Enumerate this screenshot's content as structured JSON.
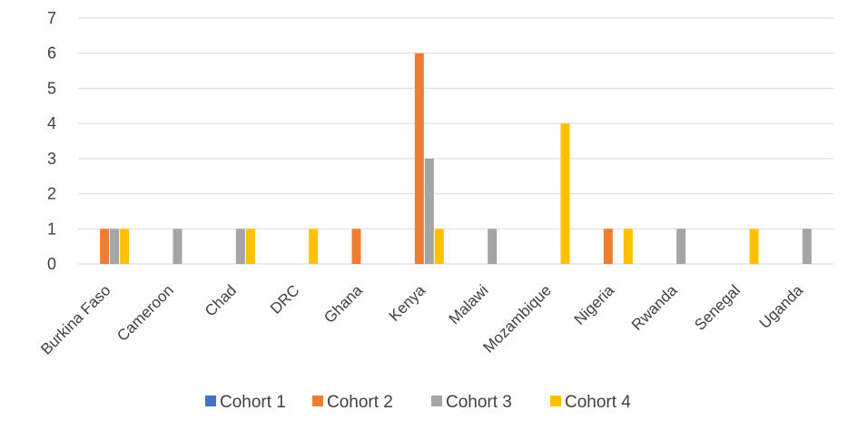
{
  "chart_data": {
    "type": "bar",
    "title": "",
    "xlabel": "",
    "ylabel": "",
    "ylim": [
      0,
      7
    ],
    "yticks": [
      "0",
      "1",
      "2",
      "3",
      "4",
      "5",
      "6",
      "7"
    ],
    "grid": true,
    "legend_position": "bottom",
    "categories": [
      "Burkina Faso",
      "Cameroon",
      "Chad",
      "DRC",
      "Ghana",
      "Kenya",
      "Malawi",
      "Mozambique",
      "Nigeria",
      "Rwanda",
      "Senegal",
      "Uganda"
    ],
    "series": [
      {
        "name": "Cohort 1",
        "color": "#4472C4",
        "values": [
          0,
          0,
          0,
          0,
          0,
          0,
          0,
          0,
          0,
          0,
          0,
          0
        ]
      },
      {
        "name": "Cohort 2",
        "color": "#ED7D31",
        "values": [
          1,
          0,
          0,
          0,
          1,
          6,
          0,
          0,
          1,
          0,
          0,
          0
        ]
      },
      {
        "name": "Cohort 3",
        "color": "#A5A5A5",
        "values": [
          1,
          1,
          1,
          0,
          0,
          3,
          1,
          0,
          0,
          1,
          0,
          1
        ]
      },
      {
        "name": "Cohort 4",
        "color": "#FFC000",
        "values": [
          1,
          0,
          1,
          1,
          0,
          1,
          0,
          4,
          1,
          0,
          1,
          0
        ]
      }
    ]
  }
}
